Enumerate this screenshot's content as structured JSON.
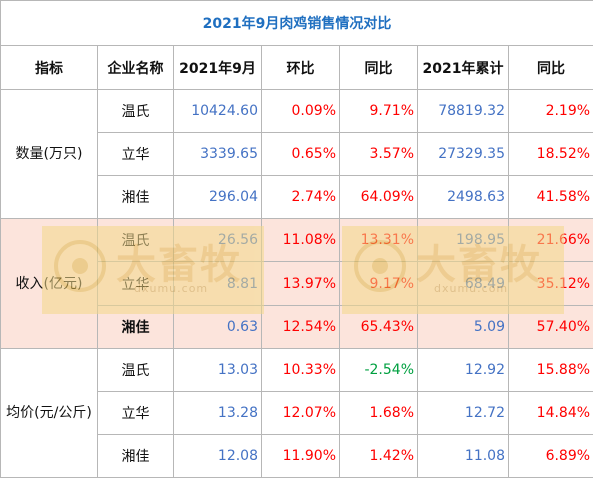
{
  "title": "2021年9月肉鸡销售情况对比",
  "headers": [
    "指标",
    "企业名称",
    "2021年9月",
    "环比",
    "同比",
    "2021年累计",
    "同比"
  ],
  "groups": [
    {
      "metric": "数量(万只)",
      "rows": [
        {
          "company": "温氏",
          "sep": "10424.60",
          "mom": "0.09%",
          "yoy": "9.71%",
          "ytd": "78819.32",
          "ytd_yoy": "2.19%"
        },
        {
          "company": "立华",
          "sep": "3339.65",
          "mom": "0.65%",
          "yoy": "3.57%",
          "ytd": "27329.35",
          "ytd_yoy": "18.52%"
        },
        {
          "company": "湘佳",
          "sep": "296.04",
          "mom": "2.74%",
          "yoy": "64.09%",
          "ytd": "2498.63",
          "ytd_yoy": "41.58%"
        }
      ]
    },
    {
      "metric": "收入(亿元)",
      "rows": [
        {
          "company": "温氏",
          "sep": "26.56",
          "mom": "11.08%",
          "yoy": "13.31%",
          "ytd": "198.95",
          "ytd_yoy": "21.66%"
        },
        {
          "company": "立华",
          "sep": "8.81",
          "mom": "13.97%",
          "yoy": "9.17%",
          "ytd": "68.49",
          "ytd_yoy": "35.12%"
        },
        {
          "company": "湘佳",
          "sep": "0.63",
          "mom": "12.54%",
          "yoy": "65.43%",
          "ytd": "5.09",
          "ytd_yoy": "57.40%"
        }
      ]
    },
    {
      "metric": "均价(元/公斤)",
      "rows": [
        {
          "company": "温氏",
          "sep": "13.03",
          "mom": "10.33%",
          "yoy": "-2.54%",
          "ytd": "12.92",
          "ytd_yoy": "15.88%"
        },
        {
          "company": "立华",
          "sep": "13.28",
          "mom": "12.07%",
          "yoy": "1.68%",
          "ytd": "12.72",
          "ytd_yoy": "14.84%"
        },
        {
          "company": "湘佳",
          "sep": "12.08",
          "mom": "11.90%",
          "yoy": "1.42%",
          "ytd": "11.08",
          "ytd_yoy": "6.89%"
        }
      ]
    }
  ],
  "watermark": {
    "text": "大畜牧",
    "url": "dxumu.com"
  },
  "colors": {
    "title": "#1f6fc0",
    "value": "#4472c4",
    "positive": "#ff0000",
    "negative": "#00a040",
    "highlight_band": "#fce4dc"
  }
}
